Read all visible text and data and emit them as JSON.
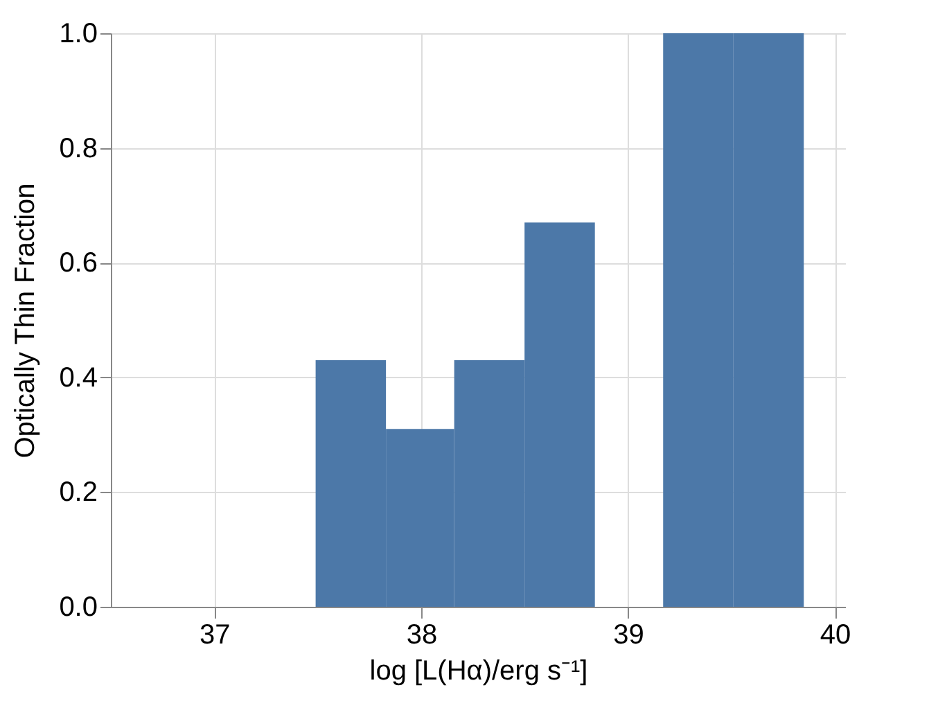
{
  "chart_data": {
    "type": "histogram",
    "xlabel": "log [L(Hα)/erg s⁻¹]",
    "ylabel": "Optically Thin Fraction",
    "bins": [
      37.49,
      37.83,
      38.16,
      38.5,
      38.84,
      39.17,
      39.51,
      39.85
    ],
    "values": [
      0.43,
      0.31,
      0.43,
      0.67,
      0,
      1,
      1
    ],
    "color": "#4c78a8",
    "xlim": [
      36.5,
      40.05
    ],
    "xticks": [
      37,
      38,
      39,
      40
    ],
    "ylim": [
      0,
      1
    ],
    "yticks": [
      {
        "value": 0,
        "label": "0.0"
      },
      0.2,
      0.4,
      0.6,
      0.8,
      {
        "value": 1,
        "label": "1.0"
      }
    ],
    "grid": true
  }
}
